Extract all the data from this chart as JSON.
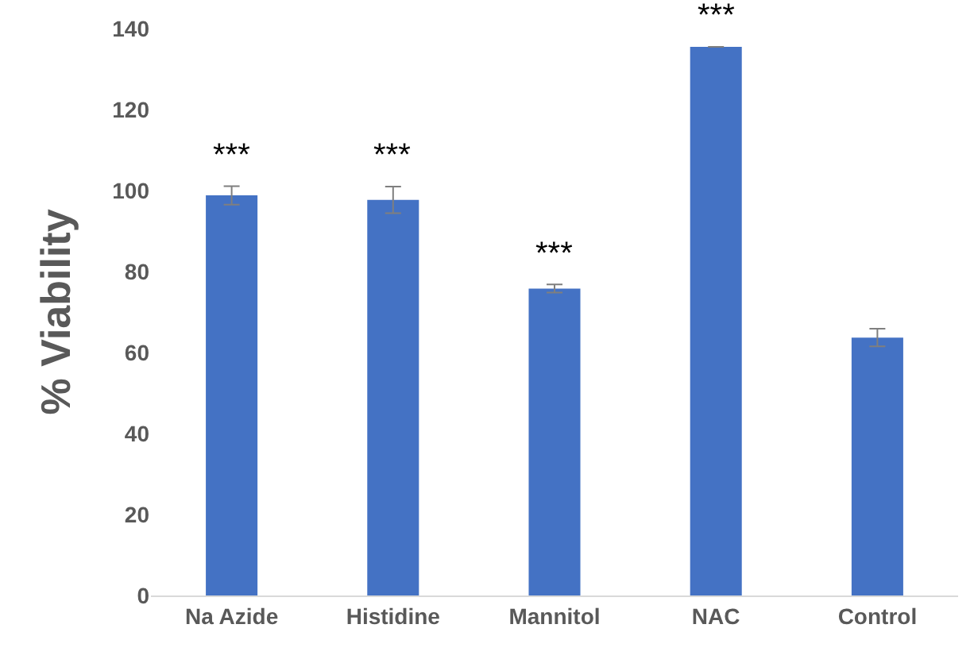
{
  "chart_data": {
    "type": "bar",
    "ylabel": "% Viability",
    "categories": [
      "Na Azide",
      "Histidine",
      "Mannitol",
      "NAC",
      "Control"
    ],
    "values": [
      98.8,
      97.7,
      75.8,
      135.5,
      63.7
    ],
    "errors": [
      2.3,
      3.3,
      1,
      0,
      2.2
    ],
    "color": "#4472c4",
    "ylim": [
      0,
      140
    ],
    "yticks": [
      0,
      20,
      40,
      60,
      80,
      100,
      120,
      140
    ],
    "annotations": [
      {
        "text": "***",
        "x": "Na Azide",
        "y": 101.1
      },
      {
        "text": "***",
        "x": "Histidine",
        "y": 101
      },
      {
        "text": "***",
        "x": "Mannitol",
        "y": 76.8
      },
      {
        "text": "***",
        "x": "NAC",
        "y": 135.5
      }
    ]
  }
}
